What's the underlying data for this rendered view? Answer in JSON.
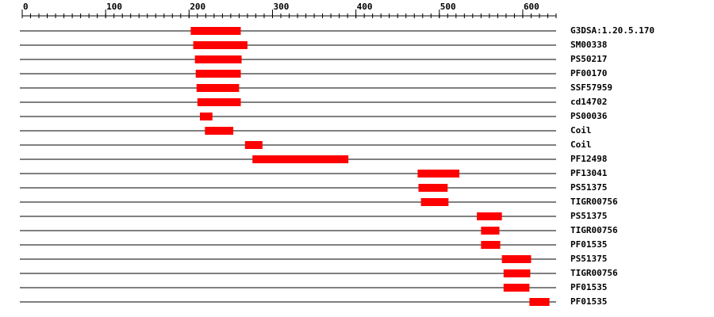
{
  "chart_data": {
    "type": "range",
    "categories": [
      "G3DSA:1.20.5.170",
      "SM00338",
      "PS50217",
      "PF00170",
      "SSF57959",
      "cd14702",
      "PS00036",
      "Coil",
      "Coil",
      "PF12498",
      "PF13041",
      "PS51375",
      "TIGR00756",
      "PS51375",
      "TIGR00756",
      "PF01535",
      "PS51375",
      "TIGR00756",
      "PF01535",
      "PF01535"
    ],
    "starts": [
      202,
      205,
      207,
      208,
      209,
      210,
      213,
      219,
      267,
      276,
      474,
      475,
      478,
      545,
      550,
      550,
      575,
      577,
      577,
      608
    ],
    "ends": [
      262,
      270,
      263,
      262,
      260,
      262,
      228,
      253,
      288,
      391,
      524,
      510,
      511,
      575,
      572,
      573,
      610,
      609,
      608,
      632
    ],
    "color": "#ff0000",
    "xlim": [
      0,
      640
    ],
    "xticks": [
      0,
      100,
      200,
      300,
      400,
      500,
      600
    ],
    "xminor_step": 10
  }
}
